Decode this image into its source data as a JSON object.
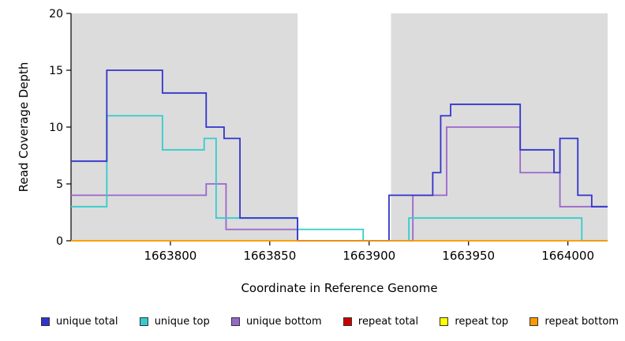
{
  "chart_data": {
    "type": "line",
    "style": "step",
    "xlabel": "Coordinate in Reference Genome",
    "ylabel": "Read Coverage Depth",
    "xlim": [
      1663750,
      1664020
    ],
    "ylim": [
      0,
      20
    ],
    "xticks": [
      1663800,
      1663850,
      1663900,
      1663950,
      1664000
    ],
    "yticks": [
      0,
      5,
      10,
      15,
      20
    ],
    "grid": false,
    "legend_position": "bottom",
    "background_regions": [
      {
        "x0": 1663750,
        "x1": 1663864,
        "color": "#DCDCDC"
      },
      {
        "x0": 1663911,
        "x1": 1664020,
        "color": "#DCDCDC"
      }
    ],
    "draw_order": [
      3,
      4,
      2,
      1,
      0,
      5
    ],
    "series": [
      {
        "name": "unique total",
        "color": "#3333CC",
        "points": [
          [
            1663750,
            7
          ],
          [
            1663768,
            15
          ],
          [
            1663796,
            13
          ],
          [
            1663818,
            10
          ],
          [
            1663827,
            9
          ],
          [
            1663835,
            2
          ],
          [
            1663864,
            0
          ],
          [
            1663910,
            4
          ],
          [
            1663932,
            6
          ],
          [
            1663936,
            11
          ],
          [
            1663941,
            12
          ],
          [
            1663976,
            8
          ],
          [
            1663993,
            6
          ],
          [
            1663996,
            9
          ],
          [
            1664005,
            4
          ],
          [
            1664012,
            3
          ],
          [
            1664020,
            3
          ]
        ]
      },
      {
        "name": "unique top",
        "color": "#33CCCC",
        "points": [
          [
            1663750,
            3
          ],
          [
            1663768,
            11
          ],
          [
            1663796,
            8
          ],
          [
            1663817,
            9
          ],
          [
            1663823,
            2
          ],
          [
            1663864,
            1
          ],
          [
            1663897,
            0
          ],
          [
            1663920,
            2
          ],
          [
            1664007,
            0
          ],
          [
            1664020,
            0
          ]
        ]
      },
      {
        "name": "unique bottom",
        "color": "#9966CC",
        "points": [
          [
            1663750,
            4
          ],
          [
            1663818,
            5
          ],
          [
            1663828,
            1
          ],
          [
            1663864,
            0
          ],
          [
            1663922,
            4
          ],
          [
            1663939,
            10
          ],
          [
            1663976,
            6
          ],
          [
            1663996,
            3
          ],
          [
            1664020,
            3
          ]
        ]
      },
      {
        "name": "repeat total",
        "color": "#CC0000",
        "points": [
          [
            1663750,
            0
          ],
          [
            1664020,
            0
          ]
        ]
      },
      {
        "name": "repeat top",
        "color": "#FFFF00",
        "points": [
          [
            1663750,
            0
          ],
          [
            1664020,
            0
          ]
        ]
      },
      {
        "name": "repeat bottom",
        "color": "#FF9900",
        "points": [
          [
            1663750,
            0
          ],
          [
            1664020,
            0
          ]
        ]
      }
    ]
  }
}
